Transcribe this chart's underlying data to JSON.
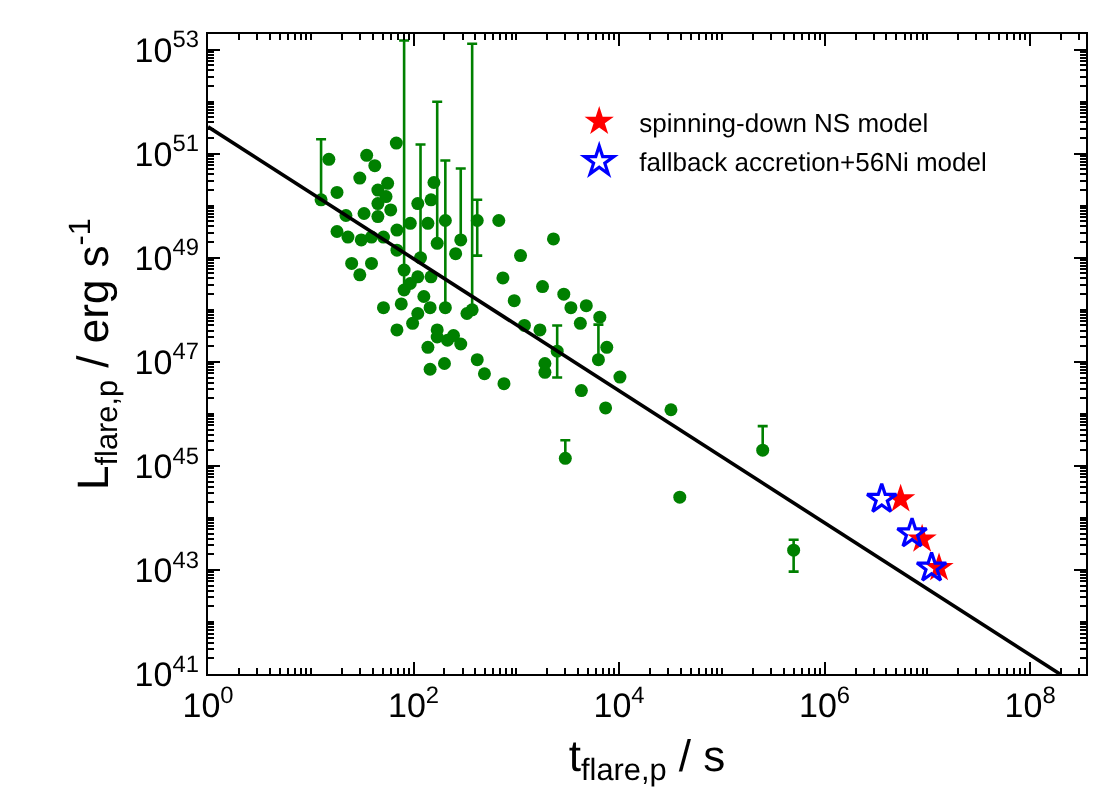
{
  "chart_data": {
    "type": "scatter",
    "xlabel": "t$_{flare,p}$ / s",
    "ylabel": "L$_{flare,p}$ / erg s$^{-1}$",
    "log": "xy",
    "legend": "top right",
    "xlim": [
      1,
      350000000.0
    ],
    "ylim": [
      1e+41,
      2e+53
    ],
    "xticks": [
      {
        "value": 1,
        "label": "10$^{0}$"
      },
      {
        "value": 100,
        "label": "10$^{2}$"
      },
      {
        "value": 10000,
        "label": "10$^{4}$"
      },
      {
        "value": 1000000,
        "label": "10$^{6}$"
      },
      {
        "value": 100000000,
        "label": "10$^{8}$"
      }
    ],
    "yticks": [
      {
        "value": 1e+41,
        "label": "10$^{41}$"
      },
      {
        "value": 1e+43,
        "label": "10$^{43}$"
      },
      {
        "value": 1e+45,
        "label": "10$^{45}$"
      },
      {
        "value": 1e+47,
        "label": "10$^{47}$"
      },
      {
        "value": 1e+49,
        "label": "10$^{49}$"
      },
      {
        "value": 1e+51,
        "label": "10$^{51}$"
      },
      {
        "value": 1e+53,
        "label": "10$^{53}$"
      }
    ],
    "series": [
      {
        "marker": "circle",
        "color": "#008000",
        "x": [
          12.6,
          15,
          18,
          35,
          42,
          68,
          30,
          22,
          18,
          31,
          25,
          30,
          39,
          45,
          56,
          60,
          69,
          51,
          69,
          81,
          98,
          110,
          93,
          117,
          148,
          158,
          138,
          204,
          148,
          170,
          145,
          138,
          145,
          170,
          204,
          200,
          245,
          288,
          257,
          331,
          372,
          417,
          417,
          490,
          676,
          741,
          759,
          955,
          1100,
          1200,
          1700,
          1800,
          1900,
          2300,
          2900,
          3400,
          4200,
          4800,
          6500,
          6300,
          7600,
          10200,
          4300,
          1900,
          33,
          45,
          39,
          51,
          69,
          81,
          93,
          110,
          54,
          45,
          126,
          76,
          214,
          288,
          170,
          110,
          23,
          2500,
          7400,
          3000,
          32000,
          39000,
          250000,
          500000
        ],
        "values": [
          1.3e+50,
          7.8e+50,
          1.8e+50,
          9.3e+50,
          5.9e+50,
          1.6e+51,
          3.4e+50,
          6.5e+49,
          3.2e+49,
          2.2e+49,
          7.8e+48,
          4.7e+48,
          7.8e+48,
          1.1e+50,
          2.7e+50,
          8.3e+49,
          3.4e+49,
          1.1e+48,
          4.1e+47,
          2.4e+48,
          5.5e+47,
          1.1e+50,
          4.6e+49,
          1e+49,
          4.3e+48,
          2.8e+50,
          4.6e+49,
          5.2e+49,
          1.3e+50,
          1.9e+49,
          1.1e+48,
          1.9e+47,
          7.2e+46,
          4.1e+47,
          1.1e+48,
          9.3e+46,
          3.2e+47,
          2.2e+49,
          1.2e+49,
          8.5e+47,
          1e+48,
          5.2e+49,
          1.1e+47,
          5.9e+46,
          5.2e+49,
          4.1e+48,
          3.8e+46,
          1.5e+48,
          1.1e+49,
          5e+47,
          4.1e+47,
          2.8e+48,
          9.3e+46,
          2.3e+49,
          2e+48,
          1.1e+48,
          5.5e+47,
          1.2e+48,
          7.2e+47,
          1.1e+47,
          1.9e+47,
          5.1e+46,
          2.8e+46,
          6.3e+46,
          7.1e+49,
          6.2e+49,
          2.5e+49,
          2.5e+49,
          1.4e+49,
          5.8e+48,
          3.2e+48,
          4.3e+48,
          1.5e+50,
          2e+50,
          1.8e+48,
          1.3e+48,
          2.6e+47,
          2.2e+47,
          3e+47,
          8.5e+47,
          2.5e+49,
          1.6e+47,
          1.3e+46,
          1.4e+45,
          1.2e+46,
          2.5e+44,
          2e+45,
          2.4e+43
        ],
        "errors": [
          [
            1.3e+50,
            1.9e+51
          ],
          null,
          null,
          null,
          null,
          null,
          null,
          null,
          null,
          null,
          null,
          null,
          null,
          null,
          null,
          null,
          null,
          null,
          null,
          [
            2.4e+48,
            1.5e+53
          ],
          null,
          null,
          null,
          [
            1e+49,
            1.5e+51
          ],
          null,
          null,
          null,
          null,
          null,
          [
            1.9e+49,
            1e+52
          ],
          null,
          null,
          null,
          null,
          [
            1.1e+48,
            7.4e+50
          ],
          null,
          null,
          [
            2.2e+49,
            5.2e+50
          ],
          null,
          null,
          [
            1e+48,
            1.3e+53
          ],
          [
            1.1e+49,
            1.3e+50
          ],
          null,
          null,
          null,
          null,
          null,
          null,
          null,
          null,
          null,
          null,
          null,
          null,
          null,
          null,
          null,
          null,
          null,
          [
            1.1e+47,
            5.2e+47
          ],
          null,
          null,
          null,
          null,
          null,
          null,
          null,
          null,
          null,
          null,
          null,
          null,
          null,
          null,
          null,
          null,
          null,
          null,
          null,
          null,
          null,
          [
            5e+46,
            5e+47
          ],
          null,
          [
            1.4e+45,
            3.1e+45
          ],
          null,
          null,
          [
            2e+45,
            5.8e+45
          ],
          [
            9.3e+42,
            3.8e+43
          ]
        ]
      },
      {
        "type": "line",
        "marker": "none",
        "line_style": "solid",
        "color": "#000000",
        "x": [
          1,
          195000000.0
        ],
        "values": [
          3.3e+51,
          1e+41
        ]
      },
      {
        "marker": "star",
        "name": "spinning-down NS model",
        "color": "#ff0000",
        "x": [
          5500000.0,
          8900000.0,
          13000000.0
        ],
        "values": [
          2.3e+44,
          3.9e+43,
          1.1e+43
        ]
      },
      {
        "marker": "star-open",
        "name": "fallback accretion+56Ni model",
        "color": "#0000ff",
        "x": [
          3600000.0,
          7100000.0,
          11000000.0
        ],
        "values": [
          2.3e+44,
          5e+43,
          1.1e+43
        ]
      }
    ]
  }
}
